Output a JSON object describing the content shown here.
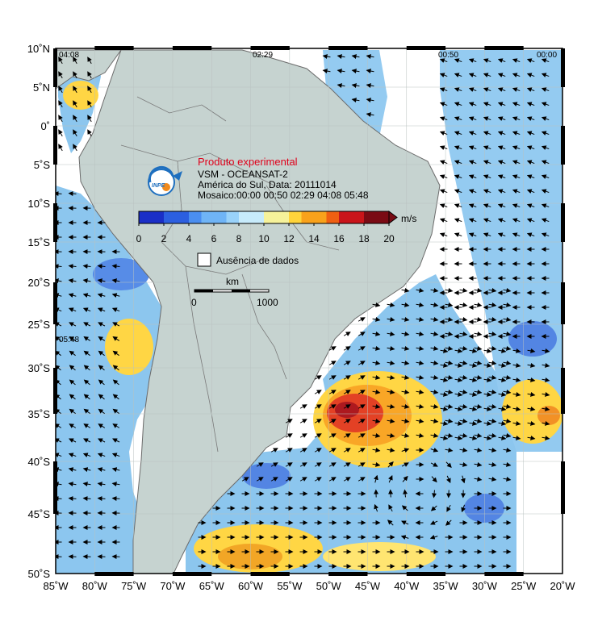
{
  "map": {
    "lat_ticks": [
      "10˚N",
      "5˚N",
      "0˚",
      "5˚S",
      "10˚S",
      "15˚S",
      "20˚S",
      "25˚S",
      "30˚S",
      "35˚S",
      "40˚S",
      "45˚S",
      "50˚S"
    ],
    "lon_ticks": [
      "85˚W",
      "80˚W",
      "75˚W",
      "70˚W",
      "65˚W",
      "60˚W",
      "55˚W",
      "50˚W",
      "45˚W",
      "40˚W",
      "35˚W",
      "30˚W",
      "25˚W",
      "20˚W"
    ],
    "swath_times": {
      "t1": "04:08",
      "t2": "02:29",
      "t3": "00:50",
      "t4": "00:00",
      "t5": "05:48"
    },
    "colors": {
      "land": "#c6d3d0",
      "ocean_nodata": "#ffffff",
      "land_outline": "#6b6b6b"
    }
  },
  "legend": {
    "title_experimental": "Produto experimental",
    "line1": "VSM - OCEANSAT-2",
    "line2": "América do Sul, Data: 20111014",
    "line3": "Mosaico:00:00 00:50 02:29 04:08 05:48",
    "logo_text": "INPE",
    "colorbar_ticks": [
      "0",
      "2",
      "4",
      "6",
      "8",
      "10",
      "12",
      "14",
      "16",
      "18",
      "20"
    ],
    "colorbar_unit": "m/s",
    "colorbar_range": [
      0,
      20
    ],
    "colorbar_colors": [
      "#1a2fc7",
      "#2c5fe0",
      "#4a8ef0",
      "#6fb4f6",
      "#99d2fa",
      "#c7ebfb",
      "#f6f29a",
      "#ffd43b",
      "#f9a21b",
      "#ef5f12",
      "#c9151a",
      "#7a0b14"
    ],
    "nodata_label": "Ausência de dados",
    "scale_unit": "km",
    "scale_start": "0",
    "scale_end": "1000"
  }
}
